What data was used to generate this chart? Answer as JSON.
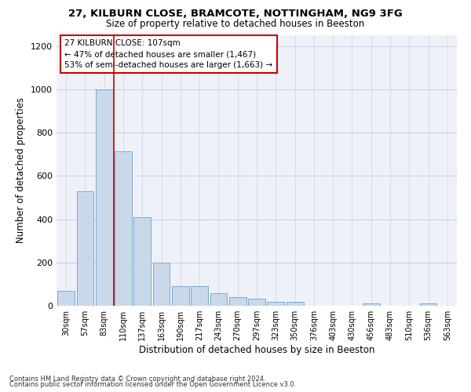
{
  "title_line1": "27, KILBURN CLOSE, BRAMCOTE, NOTTINGHAM, NG9 3FG",
  "title_line2": "Size of property relative to detached houses in Beeston",
  "xlabel": "Distribution of detached houses by size in Beeston",
  "ylabel": "Number of detached properties",
  "bar_color": "#c9d9ec",
  "bar_edge_color": "#7aaad0",
  "categories": [
    "30sqm",
    "57sqm",
    "83sqm",
    "110sqm",
    "137sqm",
    "163sqm",
    "190sqm",
    "217sqm",
    "243sqm",
    "270sqm",
    "297sqm",
    "323sqm",
    "350sqm",
    "376sqm",
    "403sqm",
    "430sqm",
    "456sqm",
    "483sqm",
    "510sqm",
    "536sqm",
    "563sqm"
  ],
  "values": [
    68,
    528,
    1000,
    715,
    408,
    198,
    90,
    90,
    57,
    40,
    33,
    18,
    18,
    0,
    0,
    0,
    10,
    0,
    0,
    10,
    0
  ],
  "ylim": [
    0,
    1250
  ],
  "yticks": [
    0,
    200,
    400,
    600,
    800,
    1000,
    1200
  ],
  "property_line_idx": 3,
  "annotation_text1": "27 KILBURN CLOSE: 107sqm",
  "annotation_text2": "← 47% of detached houses are smaller (1,467)",
  "annotation_text3": "53% of semi-detached houses are larger (1,663) →",
  "annotation_box_color": "#ffffff",
  "annotation_box_edge": "#cc0000",
  "vline_color": "#cc0000",
  "background_color": "#eef2f8",
  "footer_line1": "Contains HM Land Registry data © Crown copyright and database right 2024.",
  "footer_line2": "Contains public sector information licensed under the Open Government Licence v3.0."
}
